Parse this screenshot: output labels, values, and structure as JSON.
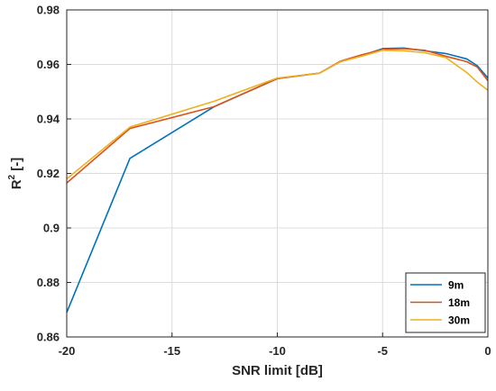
{
  "chart_data": {
    "type": "line",
    "xlabel": "SNR limit [dB]",
    "ylabel_main": "R",
    "ylabel_sup": "2",
    "ylabel_tail": " [-]",
    "xlim": [
      -20,
      0
    ],
    "ylim": [
      0.86,
      0.98
    ],
    "xticks": [
      -20,
      -15,
      -10,
      -5,
      0
    ],
    "yticks": [
      0.86,
      0.88,
      0.9,
      0.92,
      0.94,
      0.96,
      0.98
    ],
    "xtick_labels": [
      "-20",
      "-15",
      "-10",
      "-5",
      "0"
    ],
    "ytick_labels": [
      "0.86",
      "0.88",
      "0.9",
      "0.92",
      "0.94",
      "0.96",
      "0.98"
    ],
    "grid": true,
    "legend_position": "bottom-right",
    "series": [
      {
        "name": "9m",
        "color": "#0072BD",
        "x": [
          -20,
          -17,
          -13,
          -10,
          -8,
          -7,
          -6,
          -5,
          -4,
          -3,
          -2,
          -1,
          -0.5,
          0
        ],
        "y": [
          0.869,
          0.9255,
          0.9445,
          0.9548,
          0.9568,
          0.961,
          0.9632,
          0.9658,
          0.966,
          0.965,
          0.964,
          0.962,
          0.9595,
          0.955
        ]
      },
      {
        "name": "18m",
        "color": "#D95319",
        "x": [
          -20,
          -17,
          -13,
          -10,
          -8,
          -7,
          -6,
          -5,
          -4,
          -3,
          -2,
          -1,
          -0.5,
          0
        ],
        "y": [
          0.9165,
          0.9365,
          0.9445,
          0.9548,
          0.9568,
          0.9612,
          0.9635,
          0.9655,
          0.9658,
          0.9652,
          0.963,
          0.961,
          0.959,
          0.954
        ]
      },
      {
        "name": "30m",
        "color": "#EDB120",
        "x": [
          -20,
          -17,
          -13,
          -10,
          -8,
          -7,
          -6,
          -5,
          -4,
          -3,
          -2,
          -1,
          -0.5,
          0
        ],
        "y": [
          0.918,
          0.937,
          0.9465,
          0.955,
          0.9568,
          0.961,
          0.963,
          0.9652,
          0.965,
          0.9643,
          0.9625,
          0.957,
          0.9535,
          0.9505
        ]
      }
    ]
  }
}
